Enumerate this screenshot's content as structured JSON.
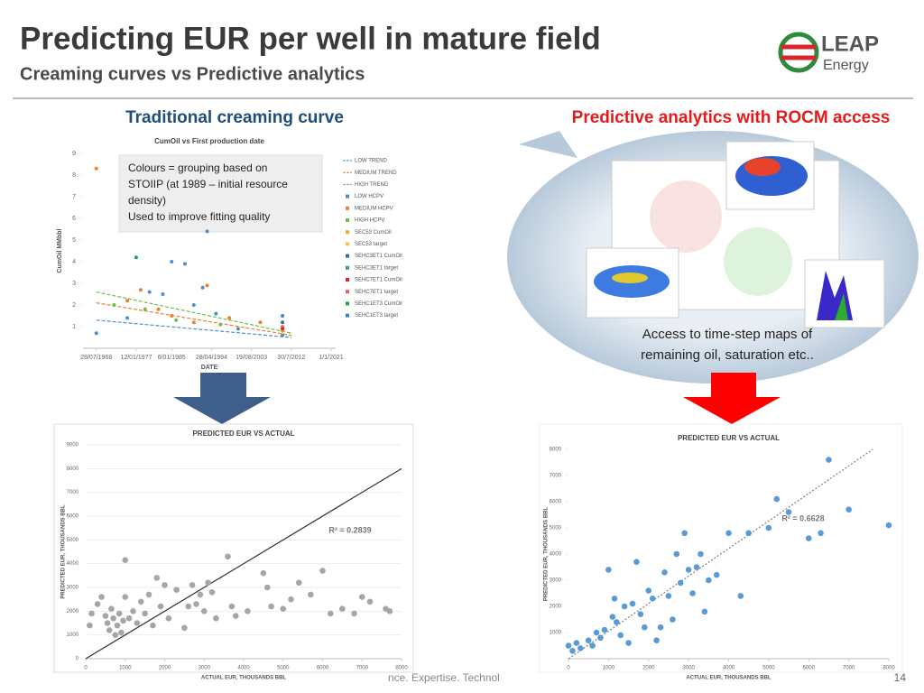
{
  "header": {
    "title": "Predicting EUR per well in mature field",
    "subtitle": "Creaming curves vs Predictive analytics",
    "logo": "LEAP",
    "logo_sub": "Energy"
  },
  "left": {
    "heading": "Traditional creaming curve",
    "callout": [
      "Colours = grouping based on",
      "STOIIP (at 1989 – initial resource",
      "density)",
      "Used to improve fitting quality"
    ]
  },
  "right": {
    "heading": "Predictive analytics with ROCM access",
    "caption": [
      "Access to time-step maps of",
      "remaining oil, saturation etc.."
    ]
  },
  "footer": {
    "tagline": "nce. Expertise. Technol",
    "page": "14"
  },
  "chart_data": [
    {
      "type": "scatter",
      "title": "CumOil vs First production date",
      "xlabel": "DATE",
      "ylabel": "CumOil MMbbl",
      "xlim": [
        1965,
        2022
      ],
      "xticks": [
        {
          "value": 1968,
          "label": "28/07/1968"
        },
        {
          "value": 1977,
          "label": "12/01/1977"
        },
        {
          "value": 1985,
          "label": "6/01/1985"
        },
        {
          "value": 1994,
          "label": "28/04/1994"
        },
        {
          "value": 2003,
          "label": "19/08/2003"
        },
        {
          "value": 2012,
          "label": "30/7/2012"
        },
        {
          "value": 2021,
          "label": "1/1/2021"
        }
      ],
      "ylim": [
        0,
        9
      ],
      "yticks": [
        1,
        2,
        3,
        4,
        5,
        6,
        7,
        8,
        9
      ],
      "series": [
        {
          "name": "LOW TREND",
          "color": "#4a90d0",
          "kind": "line",
          "x": [
            1968,
            2012
          ],
          "values": [
            1.3,
            0.5
          ]
        },
        {
          "name": "MEDIUM TREND",
          "color": "#f07f2a",
          "kind": "line",
          "x": [
            1968,
            2012
          ],
          "values": [
            2.1,
            0.6
          ]
        },
        {
          "name": "HIGH TREND",
          "color": "#6abf45",
          "kind": "line",
          "x": [
            1968,
            2012
          ],
          "values": [
            2.6,
            0.7
          ]
        },
        {
          "name": "LOW HCPV",
          "color": "#4a90d0",
          "kind": "point",
          "x": [
            1968,
            1975,
            1980,
            1983,
            1985,
            1988,
            1990,
            1992,
            1993,
            1995,
            2000,
            2010
          ],
          "values": [
            0.7,
            1.4,
            2.6,
            2.5,
            4.0,
            3.9,
            2.0,
            2.8,
            5.4,
            1.6,
            0.9,
            0.6
          ]
        },
        {
          "name": "MEDIUM HCPV",
          "color": "#f07f2a",
          "kind": "point",
          "x": [
            1968,
            1975,
            1978,
            1982,
            1985,
            1990,
            1993,
            1998,
            2005,
            2010
          ],
          "values": [
            8.3,
            2.2,
            2.7,
            1.8,
            1.5,
            1.2,
            2.9,
            1.4,
            1.2,
            1.0
          ]
        },
        {
          "name": "HIGH HCPV",
          "color": "#6abf45",
          "kind": "point",
          "x": [
            1972,
            1979,
            1986,
            1996
          ],
          "values": [
            2.0,
            1.8,
            1.3,
            1.1
          ]
        },
        {
          "name": "SEC53 CumOil",
          "color": "#f5a623",
          "kind": "point",
          "x": [
            2010
          ],
          "values": [
            0.8
          ]
        },
        {
          "name": "SEC53 target",
          "color": "#f5c842",
          "kind": "point",
          "x": [],
          "values": []
        },
        {
          "name": "SEHC3ET1 CumOil",
          "color": "#2e6fb5",
          "kind": "point",
          "x": [
            2010
          ],
          "values": [
            1.2
          ]
        },
        {
          "name": "SEHC3ET1 target",
          "color": "#2e9e9e",
          "kind": "point",
          "x": [],
          "values": []
        },
        {
          "name": "SEHC7ET1 CumOil",
          "color": "#d9262b",
          "kind": "point",
          "x": [
            2010
          ],
          "values": [
            0.9
          ]
        },
        {
          "name": "SEHC7ET1 target",
          "color": "#e06666",
          "kind": "point",
          "x": [],
          "values": []
        },
        {
          "name": "SEHC1ET3 CumOil",
          "color": "#1aa05a",
          "kind": "point",
          "x": [
            1977
          ],
          "values": [
            4.2
          ]
        },
        {
          "name": "SEHC1ET3 target",
          "color": "#3c7fd0",
          "kind": "point",
          "x": [
            2010
          ],
          "values": [
            1.5
          ]
        }
      ]
    },
    {
      "type": "scatter",
      "title": "PREDICTED EUR VS ACTUAL",
      "xlabel": "ACTUAL EUR, THOUSANDS BBL",
      "ylabel": "PREDICTED EUR, THOUSANDS BBL",
      "annotation": "R² = 0.2839",
      "grid": true,
      "trend_style": "solid",
      "trend_color": "#333333",
      "xlim": [
        0,
        8000
      ],
      "xticks": [
        0,
        1000,
        2000,
        3000,
        4000,
        5000,
        6000,
        7000,
        8000
      ],
      "ylim": [
        0,
        9000
      ],
      "yticks": [
        0,
        1000,
        2000,
        3000,
        4000,
        5000,
        6000,
        7000,
        8000,
        9000
      ],
      "trend": {
        "x": [
          0,
          8000
        ],
        "y": [
          0,
          8000
        ]
      },
      "series": [
        {
          "color": "#a6a6a6",
          "x": [
            1000,
            100,
            150,
            300,
            400,
            500,
            550,
            600,
            650,
            700,
            750,
            800,
            850,
            900,
            950,
            1000,
            1100,
            1200,
            1300,
            1400,
            1500,
            1600,
            1700,
            1800,
            1900,
            2000,
            2100,
            2300,
            2500,
            2600,
            2700,
            2800,
            2900,
            3000,
            3100,
            3200,
            3300,
            3600,
            3700,
            3800,
            4100,
            4500,
            4600,
            4700,
            5000,
            5200,
            5400,
            5700,
            6000,
            6200,
            6500,
            6800,
            7000,
            7200,
            7600,
            7700
          ],
          "values": [
            4150,
            1400,
            1900,
            2300,
            2600,
            1800,
            1500,
            1200,
            2100,
            1700,
            1000,
            1400,
            1900,
            1100,
            1600,
            2600,
            1700,
            2000,
            1500,
            2400,
            1900,
            2700,
            1400,
            3400,
            2200,
            3100,
            1700,
            2900,
            1300,
            2200,
            3100,
            2300,
            2700,
            2000,
            3200,
            2800,
            1700,
            4300,
            2200,
            1800,
            2000,
            3600,
            3000,
            2200,
            2100,
            2500,
            3200,
            2700,
            3700,
            1900,
            2100,
            1900,
            2600,
            2400,
            2100,
            2000
          ]
        }
      ]
    },
    {
      "type": "scatter",
      "title": "PREDICTED EUR VS ACTUAL",
      "xlabel": "ACTUAL EUR, THOUSANDS BBL",
      "ylabel": "PREDICTED EUR, THOUSANDS BBL",
      "annotation": "R² = 0.6628",
      "grid": false,
      "trend_style": "dotted",
      "trend_color": "#7f7f7f",
      "xlim": [
        0,
        8000
      ],
      "xticks": [
        0,
        1000,
        2000,
        3000,
        4000,
        5000,
        6000,
        7000,
        8000
      ],
      "ylim": [
        0,
        8000
      ],
      "yticks": [
        1000,
        2000,
        3000,
        4000,
        5000,
        6000,
        7000,
        8000
      ],
      "trend": {
        "x": [
          0,
          7600
        ],
        "y": [
          0,
          8000
        ]
      },
      "series": [
        {
          "color": "#5b9bd5",
          "x": [
            0,
            100,
            200,
            300,
            500,
            600,
            700,
            800,
            900,
            1000,
            1100,
            1150,
            1200,
            1300,
            1400,
            1500,
            1600,
            1700,
            1800,
            1900,
            2000,
            2100,
            2200,
            2300,
            2400,
            2500,
            2600,
            2700,
            2800,
            2900,
            3000,
            3100,
            3200,
            3300,
            3400,
            3500,
            3700,
            4000,
            4300,
            4500,
            5000,
            5200,
            5500,
            6000,
            6300,
            6500,
            7000,
            8000
          ],
          "values": [
            500,
            300,
            600,
            400,
            700,
            500,
            1000,
            800,
            1100,
            3400,
            1600,
            2300,
            1400,
            900,
            2000,
            600,
            2100,
            3700,
            1700,
            1200,
            2600,
            2300,
            700,
            1200,
            3300,
            2400,
            1500,
            4000,
            2900,
            4800,
            3400,
            2500,
            3500,
            4000,
            1800,
            3000,
            3200,
            4800,
            2400,
            4800,
            5000,
            6100,
            5600,
            4600,
            4800,
            7600,
            5700,
            5100
          ]
        }
      ]
    }
  ]
}
